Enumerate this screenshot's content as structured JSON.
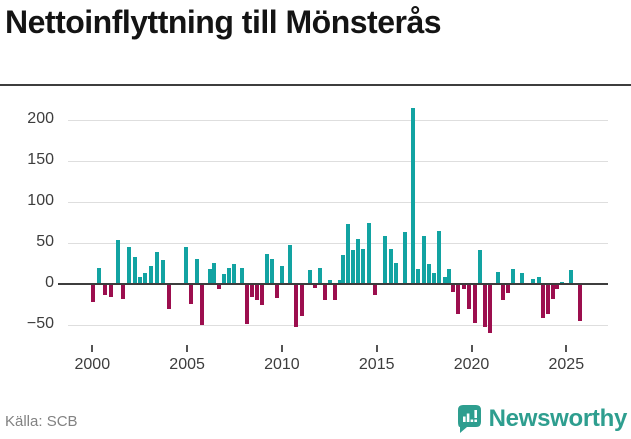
{
  "title": "Nettoinflyttning till Mönsterås",
  "source": "Källa: SCB",
  "branding": {
    "logo_text": "Newsworthy",
    "logo_icon": "speech-bubble-bar-chart-icon"
  },
  "colors": {
    "positive_bar": "#12a3a2",
    "negative_bar": "#9c0e4e",
    "zero_line": "#3d3d3d",
    "gridline": "#dedede",
    "axis_text": "#3d3d3d",
    "source_text": "#828282",
    "brand_teal": "#2e9e8f",
    "title_text": "#141414"
  },
  "chart_data": {
    "type": "bar",
    "title": "Nettoinflyttning till Mönsterås",
    "xlabel": "",
    "ylabel": "",
    "grid": true,
    "legend": "none",
    "y_axis": {
      "ticks": [
        {
          "label": "200",
          "value": 200
        },
        {
          "label": "150",
          "value": 150
        },
        {
          "label": "100",
          "value": 100
        },
        {
          "label": "50",
          "value": 50
        },
        {
          "label": "0",
          "value": 0
        },
        {
          "label": "−50",
          "value": -50
        }
      ],
      "range": [
        -75,
        230
      ]
    },
    "x_axis": {
      "ticks": [
        {
          "label": "2000",
          "value": 2000
        },
        {
          "label": "2005",
          "value": 2005
        },
        {
          "label": "2010",
          "value": 2010
        },
        {
          "label": "2015",
          "value": 2015
        },
        {
          "label": "2020",
          "value": 2020
        },
        {
          "label": "2025",
          "value": 2025
        }
      ],
      "range": [
        1999.7,
        2026.2
      ]
    },
    "series_name": "Nettoinflyttning",
    "x": [
      2000.05,
      2000.37,
      2000.68,
      2001.01,
      2001.33,
      2001.63,
      2001.95,
      2002.26,
      2002.49,
      2002.76,
      2003.07,
      2003.39,
      2003.71,
      2004.02,
      2004.93,
      2005.23,
      2005.5,
      2005.79,
      2006.22,
      2006.42,
      2006.68,
      2006.95,
      2007.21,
      2007.48,
      2007.88,
      2008.18,
      2008.44,
      2008.71,
      2008.97,
      2009.23,
      2009.49,
      2009.76,
      2009.98,
      2010.42,
      2010.74,
      2011.05,
      2011.47,
      2011.74,
      2012.0,
      2012.26,
      2012.53,
      2012.79,
      2013.05,
      2013.23,
      2013.49,
      2013.76,
      2014.02,
      2014.28,
      2014.62,
      2014.93,
      2015.43,
      2015.74,
      2016.0,
      2016.47,
      2016.92,
      2017.19,
      2017.48,
      2017.76,
      2018.0,
      2018.28,
      2018.58,
      2018.81,
      2019.02,
      2019.28,
      2019.58,
      2019.86,
      2020.16,
      2020.44,
      2020.72,
      2020.97,
      2021.39,
      2021.65,
      2021.92,
      2022.2,
      2022.65,
      2023.26,
      2023.55,
      2023.79,
      2024.04,
      2024.28,
      2024.53,
      2024.79,
      2025.23,
      2025.72
    ],
    "values": [
      -22,
      20,
      -14,
      -16,
      54,
      -18,
      45,
      33,
      9,
      14,
      22,
      39,
      29,
      -30,
      45,
      -24,
      31,
      -50,
      18,
      26,
      -6,
      12,
      20,
      24,
      19,
      -49,
      -16,
      -20,
      -26,
      36,
      30,
      -17,
      22,
      47,
      -52,
      -39,
      17,
      -5,
      19,
      -19,
      5,
      -20,
      5,
      35,
      73,
      41,
      55,
      43,
      75,
      -14,
      59,
      43,
      26,
      63,
      215,
      18,
      59,
      24,
      14,
      65,
      8,
      18,
      -10,
      -36,
      -6,
      -30,
      -48,
      42,
      -53,
      -60,
      15,
      -19,
      -11,
      18,
      13,
      6,
      9,
      -42,
      -36,
      -18,
      -6,
      3,
      17,
      -45
    ]
  }
}
